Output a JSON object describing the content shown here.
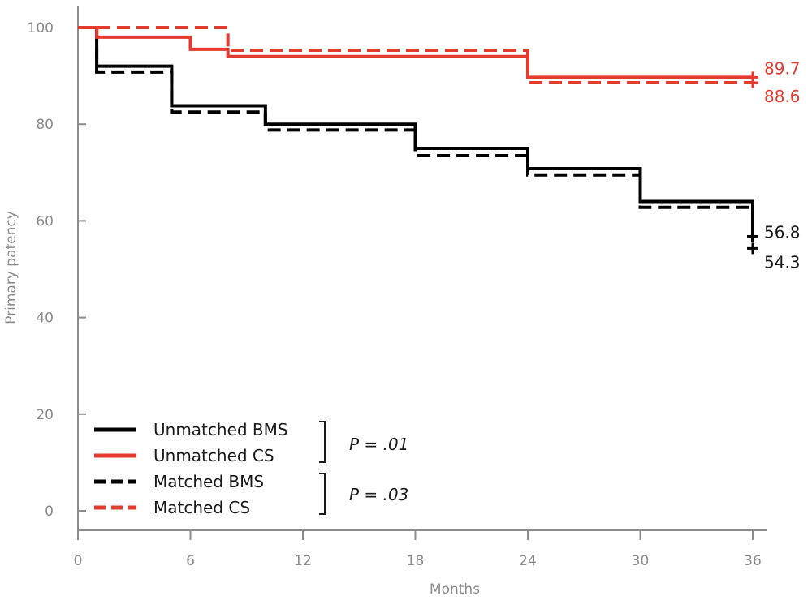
{
  "chart_data": {
    "type": "line",
    "subtype": "step",
    "title": "",
    "xlabel": "Months",
    "ylabel": "Primary patency",
    "xlim": [
      0,
      36
    ],
    "ylim": [
      0,
      105
    ],
    "x_ticks": [
      0,
      6,
      12,
      18,
      24,
      30,
      36
    ],
    "x_tick_labels": [
      "0",
      "6",
      "12",
      "18",
      "24",
      "30",
      "36"
    ],
    "y_ticks": [
      0,
      20,
      40,
      60,
      80,
      100
    ],
    "y_tick_labels": [
      "0",
      "20",
      "40",
      "60",
      "80",
      "100"
    ],
    "grid": false,
    "legend_position": "bottom-left",
    "series": [
      {
        "name": "Unmatched BMS",
        "color": "#000000",
        "dash": "solid",
        "x": [
          0,
          1,
          5,
          10,
          18,
          24,
          30,
          36,
          36
        ],
        "y": [
          100,
          92,
          83.8,
          80,
          75,
          70.8,
          64,
          64,
          56.8
        ],
        "end_value": 56.8,
        "end_label": "56.8"
      },
      {
        "name": "Unmatched CS",
        "color": "#e53a2e",
        "dash": "solid",
        "x": [
          0,
          1,
          6,
          8,
          24,
          36
        ],
        "y": [
          100,
          98,
          95.5,
          94,
          89.7,
          89.7
        ],
        "end_value": 89.7,
        "end_label": "89.7"
      },
      {
        "name": "Matched BMS",
        "color": "#000000",
        "dash": "dashed",
        "x": [
          0,
          1,
          5,
          10,
          18,
          24,
          30,
          36,
          36
        ],
        "y": [
          100,
          90.8,
          82.5,
          78.8,
          73.5,
          69.5,
          62.8,
          62.8,
          54.3
        ],
        "end_value": 54.3,
        "end_label": "54.3"
      },
      {
        "name": "Matched CS",
        "color": "#e53a2e",
        "dash": "dashed",
        "x": [
          0,
          6,
          8,
          24,
          36
        ],
        "y": [
          100,
          100,
          95.3,
          88.6,
          88.6
        ],
        "end_value": 88.6,
        "end_label": "88.6"
      }
    ],
    "annotations": [
      {
        "text": "P = .01",
        "groups": [
          "Unmatched BMS",
          "Unmatched CS"
        ]
      },
      {
        "text": "P = .03",
        "groups": [
          "Matched BMS",
          "Matched CS"
        ]
      }
    ]
  }
}
